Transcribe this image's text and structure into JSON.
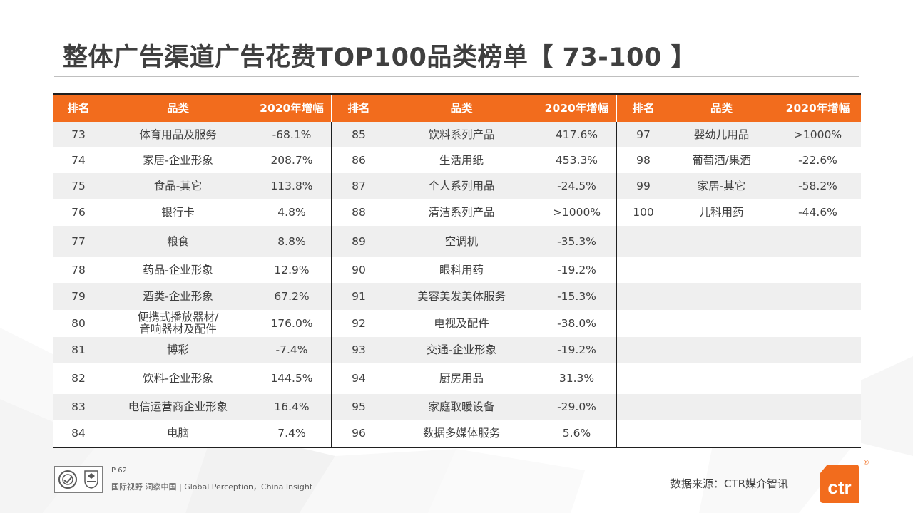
{
  "title": "整体广告渠道广告花费TOP100品类榜单【 73-100 】",
  "headers": {
    "rank": "排名",
    "category": "品类",
    "growth": "2020年增幅"
  },
  "rows": [
    {
      "r1": "73",
      "c1": "体育用品及服务",
      "g1": "-68.1%",
      "r2": "85",
      "c2": "饮料系列产品",
      "g2": "417.6%",
      "r3": "97",
      "c3": "婴幼儿用品",
      "g3": ">1000%"
    },
    {
      "r1": "74",
      "c1": "家居-企业形象",
      "g1": "208.7%",
      "r2": "86",
      "c2": "生活用纸",
      "g2": "453.3%",
      "r3": "98",
      "c3": "葡萄酒/果酒",
      "g3": "-22.6%"
    },
    {
      "r1": "75",
      "c1": "食品-其它",
      "g1": "113.8%",
      "r2": "87",
      "c2": "个人系列用品",
      "g2": "-24.5%",
      "r3": "99",
      "c3": "家居-其它",
      "g3": "-58.2%"
    },
    {
      "r1": "76",
      "c1": "银行卡",
      "g1": "4.8%",
      "r2": "88",
      "c2": "清洁系列产品",
      "g2": ">1000%",
      "r3": "100",
      "c3": "儿科用药",
      "g3": "-44.6%"
    },
    {
      "r1": "77",
      "c1": "粮食",
      "g1": "8.8%",
      "r2": "89",
      "c2": "空调机",
      "g2": "-35.3%",
      "r3": "",
      "c3": "",
      "g3": ""
    },
    {
      "r1": "78",
      "c1": "药品-企业形象",
      "g1": "12.9%",
      "r2": "90",
      "c2": "眼科用药",
      "g2": "-19.2%",
      "r3": "",
      "c3": "",
      "g3": ""
    },
    {
      "r1": "79",
      "c1": "酒类-企业形象",
      "g1": "67.2%",
      "r2": "91",
      "c2": "美容美发美体服务",
      "g2": "-15.3%",
      "r3": "",
      "c3": "",
      "g3": ""
    },
    {
      "r1": "80",
      "c1a": "便携式播放器材/",
      "c1b": "音响器材及配件",
      "g1": "176.0%",
      "r2": "92",
      "c2": "电视及配件",
      "g2": "-38.0%",
      "r3": "",
      "c3": "",
      "g3": ""
    },
    {
      "r1": "81",
      "c1": "博彩",
      "g1": "-7.4%",
      "r2": "93",
      "c2": "交通-企业形象",
      "g2": "-19.2%",
      "r3": "",
      "c3": "",
      "g3": ""
    },
    {
      "r1": "82",
      "c1": "饮料-企业形象",
      "g1": "144.5%",
      "r2": "94",
      "c2": "厨房用品",
      "g2": "31.3%",
      "r3": "",
      "c3": "",
      "g3": ""
    },
    {
      "r1": "83",
      "c1": "电信运营商企业形象",
      "g1": "16.4%",
      "r2": "95",
      "c2": "家庭取暖设备",
      "g2": "-29.0%",
      "r3": "",
      "c3": "",
      "g3": ""
    },
    {
      "r1": "84",
      "c1": "电脑",
      "g1": "7.4%",
      "r2": "96",
      "c2": "数据多媒体服务",
      "g2": "5.6%",
      "r3": "",
      "c3": "",
      "g3": ""
    }
  ],
  "footer": {
    "page": "P 62",
    "slogan": "国际视野  洞察中国 |  Global Perception，China Insight",
    "source": "数据来源：CTR媒介智讯",
    "logo_text": "ctr",
    "reg_mark": "®"
  },
  "colors": {
    "header_bg": "#f26c1d",
    "row_shade": "#efefef",
    "logo": "#f26c1d"
  }
}
